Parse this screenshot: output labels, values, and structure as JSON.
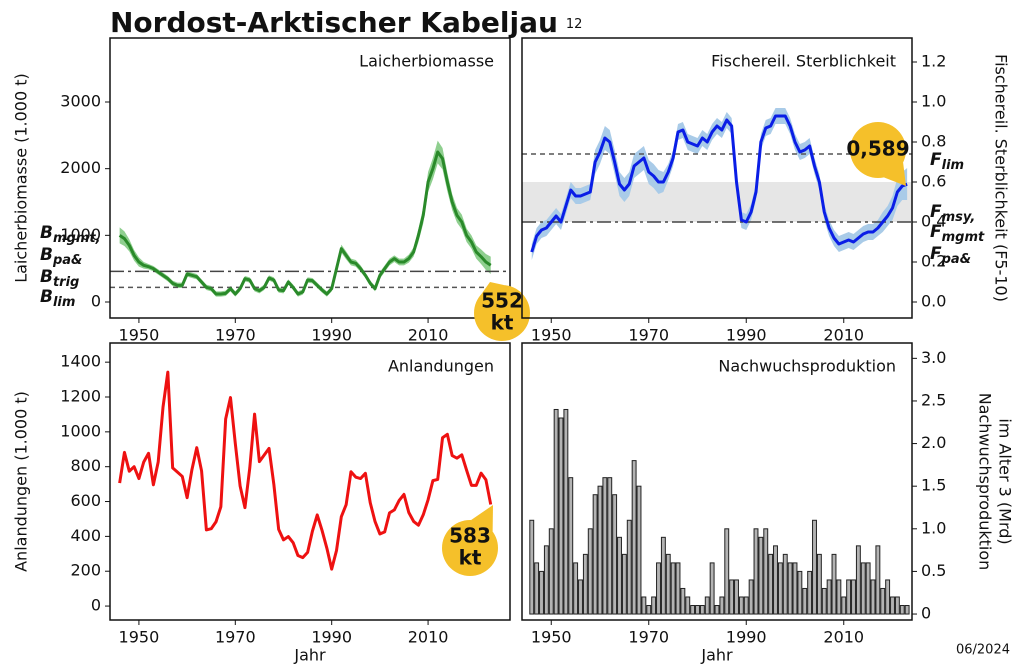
{
  "title": "Nordost-Arktischer Kabeljau",
  "title_note": "12",
  "date": "06/2024",
  "chart_data": [
    {
      "type": "line",
      "title": "Laicherbiomasse",
      "ylabel": [
        "Laicherbiomasse (1.000 t)"
      ],
      "yaxis": "left",
      "xlim": [
        1944,
        2027
      ],
      "ylim": [
        -240,
        3960
      ],
      "xticks": [
        1950,
        1970,
        1990,
        2010
      ],
      "yticks": [
        0,
        1000,
        2000,
        3000
      ],
      "color": "#2a8a2a",
      "band_color": "#8fcf8f",
      "x": [
        1946,
        1947,
        1948,
        1949,
        1950,
        1951,
        1952,
        1953,
        1954,
        1955,
        1956,
        1957,
        1958,
        1959,
        1960,
        1961,
        1962,
        1963,
        1964,
        1965,
        1966,
        1967,
        1968,
        1969,
        1970,
        1971,
        1972,
        1973,
        1974,
        1975,
        1976,
        1977,
        1978,
        1979,
        1980,
        1981,
        1982,
        1983,
        1984,
        1985,
        1986,
        1987,
        1988,
        1989,
        1990,
        1991,
        1992,
        1993,
        1994,
        1995,
        1996,
        1997,
        1998,
        1999,
        2000,
        2001,
        2002,
        2003,
        2004,
        2005,
        2006,
        2007,
        2008,
        2009,
        2010,
        2011,
        2012,
        2013,
        2014,
        2015,
        2016,
        2017,
        2018,
        2019,
        2020,
        2021,
        2022,
        2023
      ],
      "values": [
        1000,
        950,
        850,
        700,
        600,
        550,
        530,
        500,
        450,
        400,
        350,
        280,
        250,
        250,
        420,
        400,
        380,
        300,
        220,
        200,
        120,
        120,
        130,
        200,
        120,
        200,
        350,
        330,
        200,
        170,
        220,
        360,
        330,
        180,
        170,
        300,
        220,
        120,
        150,
        330,
        320,
        250,
        180,
        120,
        200,
        500,
        800,
        700,
        600,
        580,
        500,
        400,
        280,
        200,
        400,
        500,
        600,
        650,
        600,
        600,
        650,
        750,
        1000,
        1300,
        1800,
        2000,
        2250,
        2150,
        1800,
        1500,
        1300,
        1200,
        1000,
        900,
        750,
        680,
        600,
        552
      ],
      "band_lower": [
        880,
        840,
        760,
        620,
        530,
        500,
        490,
        460,
        410,
        360,
        310,
        240,
        210,
        210,
        380,
        360,
        340,
        260,
        180,
        160,
        80,
        80,
        90,
        160,
        80,
        160,
        310,
        290,
        160,
        130,
        180,
        320,
        290,
        140,
        130,
        260,
        180,
        80,
        110,
        290,
        280,
        210,
        140,
        80,
        160,
        450,
        740,
        640,
        550,
        530,
        450,
        360,
        240,
        160,
        350,
        450,
        550,
        600,
        550,
        550,
        590,
        680,
        900,
        1180,
        1650,
        1840,
        2080,
        1990,
        1660,
        1380,
        1190,
        1090,
        900,
        800,
        650,
        570,
        480,
        420
      ],
      "band_upper": [
        1120,
        1060,
        940,
        780,
        670,
        600,
        570,
        540,
        490,
        440,
        390,
        320,
        290,
        290,
        460,
        440,
        420,
        340,
        260,
        240,
        160,
        160,
        170,
        240,
        160,
        240,
        390,
        370,
        240,
        210,
        260,
        400,
        370,
        220,
        210,
        340,
        260,
        160,
        190,
        370,
        360,
        290,
        220,
        160,
        240,
        550,
        860,
        760,
        650,
        630,
        550,
        440,
        320,
        240,
        450,
        550,
        650,
        700,
        650,
        650,
        710,
        820,
        1100,
        1420,
        1950,
        2160,
        2420,
        2310,
        1940,
        1620,
        1410,
        1310,
        1100,
        1000,
        850,
        790,
        720,
        680
      ],
      "ref_lines": [
        {
          "value": 460,
          "style": "dashdot"
        },
        {
          "value": 220,
          "style": "dashed"
        }
      ],
      "ref_labels": [
        {
          "text": "B",
          "sub": "mgmt,"
        },
        {
          "text": "B",
          "sub": "pa&"
        },
        {
          "text": "B",
          "sub": "trig"
        },
        {
          "text": "B",
          "sub": "lim"
        }
      ],
      "callout": [
        "552",
        "kt"
      ]
    },
    {
      "type": "line",
      "title": "Fischereil. Sterblichkeit",
      "ylabel": [
        "Fischereil. Sterblichkeit (F5-10)"
      ],
      "yaxis": "right",
      "xlim": [
        1944,
        2024
      ],
      "ylim": [
        -0.08,
        1.32
      ],
      "xticks": [
        1950,
        1970,
        1990,
        2010
      ],
      "yticks": [
        {
          "value": 0,
          "label": "0.0"
        },
        0.2,
        0.4,
        0.6,
        0.8,
        {
          "value": 1,
          "label": "1.0"
        },
        1.2
      ],
      "color": "#0a1ee6",
      "band_color": "#a9cbe8",
      "x": [
        1946,
        1947,
        1948,
        1949,
        1950,
        1951,
        1952,
        1953,
        1954,
        1955,
        1956,
        1957,
        1958,
        1959,
        1960,
        1961,
        1962,
        1963,
        1964,
        1965,
        1966,
        1967,
        1968,
        1969,
        1970,
        1971,
        1972,
        1973,
        1974,
        1975,
        1976,
        1977,
        1978,
        1979,
        1980,
        1981,
        1982,
        1983,
        1984,
        1985,
        1986,
        1987,
        1988,
        1989,
        1990,
        1991,
        1992,
        1993,
        1994,
        1995,
        1996,
        1997,
        1998,
        1999,
        2000,
        2001,
        2002,
        2003,
        2004,
        2005,
        2006,
        2007,
        2008,
        2009,
        2010,
        2011,
        2012,
        2013,
        2014,
        2015,
        2016,
        2017,
        2018,
        2019,
        2020,
        2021,
        2022,
        2023
      ],
      "values": [
        0.25,
        0.33,
        0.36,
        0.37,
        0.4,
        0.43,
        0.4,
        0.48,
        0.56,
        0.53,
        0.53,
        0.54,
        0.55,
        0.7,
        0.75,
        0.82,
        0.8,
        0.7,
        0.59,
        0.56,
        0.59,
        0.68,
        0.7,
        0.72,
        0.65,
        0.63,
        0.6,
        0.6,
        0.65,
        0.72,
        0.85,
        0.86,
        0.8,
        0.79,
        0.78,
        0.82,
        0.8,
        0.85,
        0.88,
        0.86,
        0.91,
        0.88,
        0.6,
        0.41,
        0.4,
        0.45,
        0.55,
        0.8,
        0.87,
        0.88,
        0.93,
        0.93,
        0.93,
        0.88,
        0.8,
        0.75,
        0.76,
        0.78,
        0.68,
        0.6,
        0.45,
        0.37,
        0.32,
        0.29,
        0.3,
        0.31,
        0.3,
        0.32,
        0.34,
        0.35,
        0.35,
        0.37,
        0.4,
        0.43,
        0.47,
        0.55,
        0.58,
        0.589
      ],
      "band_lower": [
        0.21,
        0.29,
        0.32,
        0.33,
        0.36,
        0.39,
        0.36,
        0.44,
        0.52,
        0.49,
        0.49,
        0.5,
        0.51,
        0.64,
        0.69,
        0.76,
        0.74,
        0.64,
        0.53,
        0.5,
        0.53,
        0.62,
        0.64,
        0.66,
        0.59,
        0.57,
        0.54,
        0.55,
        0.61,
        0.68,
        0.81,
        0.82,
        0.76,
        0.75,
        0.74,
        0.78,
        0.76,
        0.81,
        0.84,
        0.82,
        0.87,
        0.84,
        0.56,
        0.37,
        0.36,
        0.41,
        0.51,
        0.76,
        0.83,
        0.84,
        0.89,
        0.89,
        0.89,
        0.84,
        0.76,
        0.71,
        0.72,
        0.74,
        0.64,
        0.56,
        0.41,
        0.33,
        0.28,
        0.25,
        0.26,
        0.27,
        0.26,
        0.28,
        0.3,
        0.31,
        0.31,
        0.33,
        0.35,
        0.38,
        0.41,
        0.48,
        0.51,
        0.51
      ],
      "band_upper": [
        0.29,
        0.37,
        0.4,
        0.41,
        0.44,
        0.47,
        0.44,
        0.52,
        0.6,
        0.57,
        0.57,
        0.58,
        0.59,
        0.76,
        0.81,
        0.88,
        0.86,
        0.76,
        0.65,
        0.62,
        0.65,
        0.74,
        0.76,
        0.78,
        0.71,
        0.69,
        0.66,
        0.65,
        0.69,
        0.76,
        0.89,
        0.9,
        0.84,
        0.83,
        0.82,
        0.86,
        0.84,
        0.89,
        0.92,
        0.9,
        0.95,
        0.92,
        0.64,
        0.45,
        0.44,
        0.49,
        0.59,
        0.84,
        0.91,
        0.92,
        0.97,
        0.97,
        0.97,
        0.92,
        0.84,
        0.79,
        0.8,
        0.82,
        0.72,
        0.64,
        0.49,
        0.41,
        0.36,
        0.33,
        0.34,
        0.35,
        0.34,
        0.36,
        0.38,
        0.39,
        0.39,
        0.41,
        0.45,
        0.48,
        0.53,
        0.62,
        0.65,
        0.67
      ],
      "ref_band": [
        0.4,
        0.6
      ],
      "ref_lines": [
        {
          "value": 0.74,
          "style": "dashed"
        },
        {
          "value": 0.4,
          "style": "dashdot"
        }
      ],
      "ref_labels": [
        {
          "text": "F",
          "sub": "lim"
        },
        {
          "text": "F",
          "sub": "msy,"
        },
        {
          "text": "F",
          "sub": "mgmt"
        },
        {
          "text": "F",
          "sub": "pa&"
        }
      ],
      "callout": [
        "0,589"
      ]
    },
    {
      "type": "line",
      "title": "Anlandungen",
      "ylabel": [
        "Anlandungen (1.000 t)"
      ],
      "xlabel": "Jahr",
      "yaxis": "left",
      "xlim": [
        1944,
        2027
      ],
      "ylim": [
        -80,
        1510
      ],
      "xticks": [
        1950,
        1970,
        1990,
        2010
      ],
      "yticks": [
        0,
        200,
        400,
        600,
        800,
        1000,
        1200,
        1400
      ],
      "color": "#ee1111",
      "x": [
        1946,
        1947,
        1948,
        1949,
        1950,
        1951,
        1952,
        1953,
        1954,
        1955,
        1956,
        1957,
        1958,
        1959,
        1960,
        1961,
        1962,
        1963,
        1964,
        1965,
        1966,
        1967,
        1968,
        1969,
        1970,
        1971,
        1972,
        1973,
        1974,
        1975,
        1976,
        1977,
        1978,
        1979,
        1980,
        1981,
        1982,
        1983,
        1984,
        1985,
        1986,
        1987,
        1988,
        1989,
        1990,
        1991,
        1992,
        1993,
        1994,
        1995,
        1996,
        1997,
        1998,
        1999,
        2000,
        2001,
        2002,
        2003,
        2004,
        2005,
        2006,
        2007,
        2008,
        2009,
        2010,
        2011,
        2012,
        2013,
        2014,
        2015,
        2016,
        2017,
        2018,
        2019,
        2020,
        2021,
        2022,
        2023
      ],
      "values": [
        706,
        882,
        774,
        800,
        732,
        827,
        877,
        696,
        827,
        1142,
        1343,
        793,
        769,
        744,
        622,
        783,
        909,
        776,
        437,
        444,
        484,
        570,
        1074,
        1197,
        933,
        689,
        565,
        792,
        1102,
        829,
        867,
        905,
        698,
        440,
        380,
        399,
        364,
        290,
        278,
        308,
        430,
        523,
        434,
        332,
        212,
        319,
        513,
        582,
        771,
        740,
        732,
        762,
        593,
        485,
        414,
        426,
        535,
        552,
        606,
        641,
        537,
        486,
        464,
        524,
        610,
        720,
        727,
        966,
        986,
        864,
        849,
        868,
        779,
        693,
        693,
        763,
        725,
        583
      ],
      "callout": [
        "583",
        "kt"
      ]
    },
    {
      "type": "bar",
      "title": "Nachwuchsproduktion",
      "ylabel": [
        "Nachwuchsproduktion",
        "im Alter 3 (Mrd)"
      ],
      "xlabel": "Jahr",
      "yaxis": "right",
      "xlim": [
        1944,
        2024
      ],
      "ylim": [
        -0.07,
        3.18
      ],
      "xticks": [
        1950,
        1970,
        1990,
        2010
      ],
      "yticks": [
        0,
        0.5,
        {
          "value": 1,
          "label": "1.0"
        },
        1.5,
        {
          "value": 2,
          "label": "2.0"
        },
        2.5,
        {
          "value": 3,
          "label": "3.0"
        }
      ],
      "color": "#b3b3b3",
      "x": [
        1946,
        1947,
        1948,
        1949,
        1950,
        1951,
        1952,
        1953,
        1954,
        1955,
        1956,
        1957,
        1958,
        1959,
        1960,
        1961,
        1962,
        1963,
        1964,
        1965,
        1966,
        1967,
        1968,
        1969,
        1970,
        1971,
        1972,
        1973,
        1974,
        1975,
        1976,
        1977,
        1978,
        1979,
        1980,
        1981,
        1982,
        1983,
        1984,
        1985,
        1986,
        1987,
        1988,
        1989,
        1990,
        1991,
        1992,
        1993,
        1994,
        1995,
        1996,
        1997,
        1998,
        1999,
        2000,
        2001,
        2002,
        2003,
        2004,
        2005,
        2006,
        2007,
        2008,
        2009,
        2010,
        2011,
        2012,
        2013,
        2014,
        2015,
        2016,
        2017,
        2018,
        2019,
        2020,
        2021,
        2022,
        2023
      ],
      "values": [
        1.1,
        0.6,
        0.5,
        0.8,
        1.0,
        2.4,
        2.3,
        2.4,
        1.6,
        0.6,
        0.4,
        0.7,
        1.0,
        1.4,
        1.5,
        1.6,
        1.6,
        1.4,
        0.9,
        0.7,
        1.1,
        1.8,
        1.5,
        0.2,
        0.1,
        0.2,
        0.6,
        0.9,
        0.7,
        0.6,
        0.6,
        0.3,
        0.2,
        0.1,
        0.1,
        0.1,
        0.2,
        0.6,
        0.1,
        0.2,
        1.0,
        0.4,
        0.4,
        0.2,
        0.2,
        0.4,
        1.0,
        0.9,
        1.0,
        0.7,
        0.8,
        0.6,
        0.7,
        0.6,
        0.6,
        0.5,
        0.3,
        0.5,
        1.1,
        0.7,
        0.3,
        0.4,
        0.7,
        0.4,
        0.2,
        0.4,
        0.4,
        0.8,
        0.6,
        0.6,
        0.4,
        0.8,
        0.3,
        0.4,
        0.2,
        0.2,
        0.1,
        0.1
      ]
    }
  ]
}
